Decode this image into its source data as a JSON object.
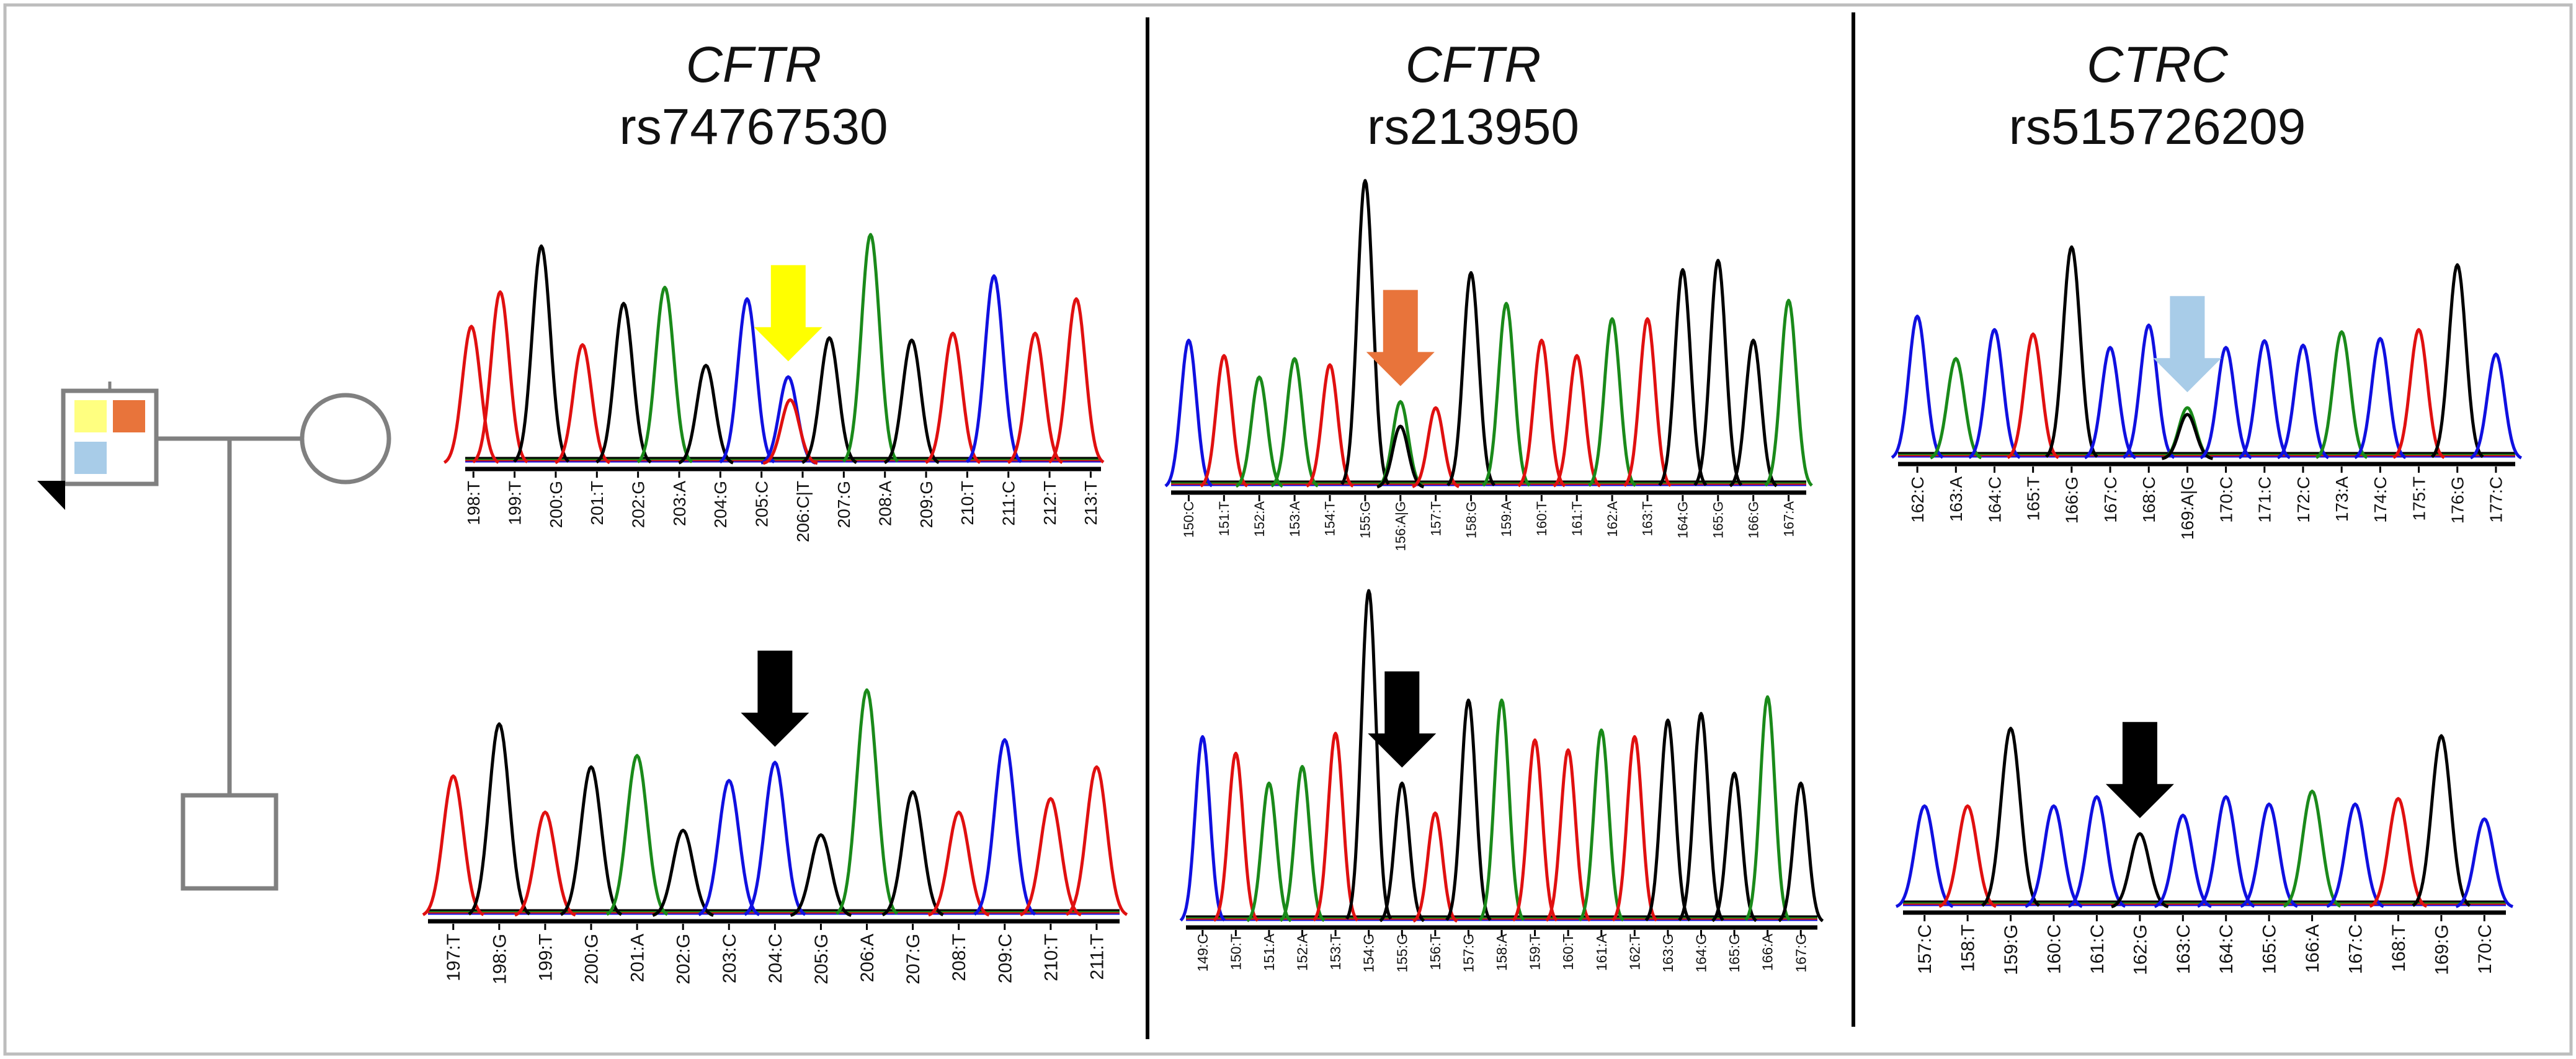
{
  "colors": {
    "A": "#1a8a1a",
    "C": "#1010e0",
    "G": "#000000",
    "T": "#e01010",
    "frame": "#bdbdbd",
    "pedigree": "#808080",
    "marker_yellow": "#ffff80",
    "marker_orange": "#e8743b",
    "marker_blue": "#a8cce8",
    "arrow_yellow": "#ffff00",
    "arrow_orange": "#e8743b",
    "arrow_blue": "#a8cce8",
    "arrow_black": "#000000"
  },
  "pedigree": {
    "proband_markers": [
      "yellow",
      "orange",
      "blue"
    ],
    "proband_sex": "male",
    "spouse_sex": "female",
    "child_sex": "male"
  },
  "panels": [
    {
      "gene": "CFTR",
      "variant": "rs74767530",
      "top_arrow_color": "yellow",
      "top": {
        "labels": [
          "198:T",
          "199:T",
          "200:G",
          "201:T",
          "202:G",
          "203:A",
          "204:G",
          "205:C",
          "206:C|T",
          "207:G",
          "208:A",
          "209:G",
          "210:T",
          "211:C",
          "212:T",
          "213:T"
        ],
        "peaks": [
          {
            "b": "T",
            "p": 0.0,
            "h": 0.0
          },
          {
            "b": "T",
            "p": 0.3,
            "h": 0.6
          },
          {
            "b": "T",
            "p": 1.0,
            "h": 0.75
          },
          {
            "b": "G",
            "p": 2.0,
            "h": 0.95
          },
          {
            "b": "T",
            "p": 3.0,
            "h": 0.52
          },
          {
            "b": "G",
            "p": 4.0,
            "h": 0.7
          },
          {
            "b": "A",
            "p": 5.0,
            "h": 0.77
          },
          {
            "b": "G",
            "p": 6.0,
            "h": 0.43
          },
          {
            "b": "C",
            "p": 7.0,
            "h": 0.72
          },
          {
            "b": "C",
            "p": 8.0,
            "h": 0.38
          },
          {
            "b": "T",
            "p": 8.05,
            "h": 0.28
          },
          {
            "b": "G",
            "p": 9.0,
            "h": 0.55
          },
          {
            "b": "A",
            "p": 10.0,
            "h": 1.0
          },
          {
            "b": "G",
            "p": 11.0,
            "h": 0.54
          },
          {
            "b": "T",
            "p": 12.0,
            "h": 0.57
          },
          {
            "b": "C",
            "p": 13.0,
            "h": 0.82
          },
          {
            "b": "T",
            "p": 14.0,
            "h": 0.57
          },
          {
            "b": "T",
            "p": 15.0,
            "h": 0.72
          }
        ],
        "arrow_index": 8
      },
      "bottom": {
        "labels": [
          "197:T",
          "198:G",
          "199:T",
          "200:G",
          "201:A",
          "202:G",
          "203:C",
          "204:C",
          "205:G",
          "206:A",
          "207:G",
          "208:T",
          "209:C",
          "210:T",
          "211:T"
        ],
        "peaks": [
          {
            "b": "T",
            "p": 0.0,
            "h": 0.62
          },
          {
            "b": "G",
            "p": 1.0,
            "h": 0.85
          },
          {
            "b": "T",
            "p": 2.0,
            "h": 0.46
          },
          {
            "b": "G",
            "p": 3.0,
            "h": 0.66
          },
          {
            "b": "A",
            "p": 4.0,
            "h": 0.71
          },
          {
            "b": "G",
            "p": 5.0,
            "h": 0.38
          },
          {
            "b": "C",
            "p": 6.0,
            "h": 0.6
          },
          {
            "b": "C",
            "p": 7.0,
            "h": 0.68
          },
          {
            "b": "G",
            "p": 8.0,
            "h": 0.36
          },
          {
            "b": "A",
            "p": 9.0,
            "h": 1.0
          },
          {
            "b": "G",
            "p": 10.0,
            "h": 0.55
          },
          {
            "b": "T",
            "p": 11.0,
            "h": 0.46
          },
          {
            "b": "C",
            "p": 12.0,
            "h": 0.78
          },
          {
            "b": "T",
            "p": 13.0,
            "h": 0.52
          },
          {
            "b": "T",
            "p": 14.0,
            "h": 0.66
          }
        ],
        "arrow_index": 7
      }
    },
    {
      "gene": "CFTR",
      "variant": "rs213950",
      "top_arrow_color": "orange",
      "top": {
        "labels": [
          "150:C",
          "151:T",
          "152:A",
          "153:A",
          "154:T",
          "155:G",
          "156:A|G",
          "157:T",
          "158:G",
          "159:A",
          "160:T",
          "161:T",
          "162:A",
          "163:T",
          "164:G",
          "165:G",
          "166:G",
          "167:A"
        ],
        "peaks": [
          {
            "b": "C",
            "p": 0.0,
            "h": 0.48
          },
          {
            "b": "T",
            "p": 1.0,
            "h": 0.43
          },
          {
            "b": "A",
            "p": 2.0,
            "h": 0.36
          },
          {
            "b": "A",
            "p": 3.0,
            "h": 0.42
          },
          {
            "b": "T",
            "p": 4.0,
            "h": 0.4
          },
          {
            "b": "G",
            "p": 5.0,
            "h": 1.0
          },
          {
            "b": "A",
            "p": 6.0,
            "h": 0.28
          },
          {
            "b": "G",
            "p": 6.0,
            "h": 0.2
          },
          {
            "b": "T",
            "p": 7.0,
            "h": 0.26
          },
          {
            "b": "G",
            "p": 8.0,
            "h": 0.7
          },
          {
            "b": "A",
            "p": 9.0,
            "h": 0.6
          },
          {
            "b": "T",
            "p": 10.0,
            "h": 0.48
          },
          {
            "b": "T",
            "p": 11.0,
            "h": 0.43
          },
          {
            "b": "A",
            "p": 12.0,
            "h": 0.55
          },
          {
            "b": "T",
            "p": 13.0,
            "h": 0.55
          },
          {
            "b": "G",
            "p": 14.0,
            "h": 0.71
          },
          {
            "b": "G",
            "p": 15.0,
            "h": 0.74
          },
          {
            "b": "G",
            "p": 16.0,
            "h": 0.48
          },
          {
            "b": "A",
            "p": 17.0,
            "h": 0.61
          }
        ],
        "arrow_index": 6
      },
      "bottom": {
        "labels": [
          "149:C",
          "150:T",
          "151:A",
          "152:A",
          "153:T",
          "154:G",
          "155:G",
          "156:T",
          "157:G",
          "158:A",
          "159:T",
          "160:T",
          "161:A",
          "162:T",
          "163:G",
          "164:G",
          "165:G",
          "166:A",
          "167:G"
        ],
        "peaks": [
          {
            "b": "C",
            "p": 0.0,
            "h": 0.56
          },
          {
            "b": "T",
            "p": 1.0,
            "h": 0.51
          },
          {
            "b": "A",
            "p": 2.0,
            "h": 0.42
          },
          {
            "b": "A",
            "p": 3.0,
            "h": 0.47
          },
          {
            "b": "T",
            "p": 4.0,
            "h": 0.57
          },
          {
            "b": "G",
            "p": 5.0,
            "h": 1.0
          },
          {
            "b": "G",
            "p": 6.0,
            "h": 0.42
          },
          {
            "b": "T",
            "p": 7.0,
            "h": 0.33
          },
          {
            "b": "G",
            "p": 8.0,
            "h": 0.67
          },
          {
            "b": "A",
            "p": 9.0,
            "h": 0.67
          },
          {
            "b": "T",
            "p": 10.0,
            "h": 0.55
          },
          {
            "b": "T",
            "p": 11.0,
            "h": 0.52
          },
          {
            "b": "A",
            "p": 12.0,
            "h": 0.58
          },
          {
            "b": "T",
            "p": 13.0,
            "h": 0.56
          },
          {
            "b": "G",
            "p": 14.0,
            "h": 0.61
          },
          {
            "b": "G",
            "p": 15.0,
            "h": 0.63
          },
          {
            "b": "G",
            "p": 16.0,
            "h": 0.45
          },
          {
            "b": "A",
            "p": 17.0,
            "h": 0.68
          },
          {
            "b": "G",
            "p": 18.0,
            "h": 0.42
          }
        ],
        "arrow_index": 6
      }
    },
    {
      "gene": "CTRC",
      "variant": "rs515726209",
      "top_arrow_color": "blue",
      "top": {
        "labels": [
          "162:C",
          "163:A",
          "164:C",
          "165:T",
          "166:G",
          "167:C",
          "168:C",
          "169:A|G",
          "170:C",
          "171:C",
          "172:C",
          "173:A",
          "174:C",
          "175:T",
          "176:G",
          "177:C"
        ],
        "peaks": [
          {
            "b": "C",
            "p": 0.0,
            "h": 0.64
          },
          {
            "b": "A",
            "p": 1.0,
            "h": 0.45
          },
          {
            "b": "C",
            "p": 2.0,
            "h": 0.58
          },
          {
            "b": "T",
            "p": 3.0,
            "h": 0.56
          },
          {
            "b": "G",
            "p": 4.0,
            "h": 0.95
          },
          {
            "b": "C",
            "p": 5.0,
            "h": 0.5
          },
          {
            "b": "C",
            "p": 6.0,
            "h": 0.6
          },
          {
            "b": "A",
            "p": 7.0,
            "h": 0.23
          },
          {
            "b": "G",
            "p": 7.0,
            "h": 0.2
          },
          {
            "b": "C",
            "p": 8.0,
            "h": 0.5
          },
          {
            "b": "C",
            "p": 9.0,
            "h": 0.53
          },
          {
            "b": "C",
            "p": 10.0,
            "h": 0.51
          },
          {
            "b": "A",
            "p": 11.0,
            "h": 0.57
          },
          {
            "b": "C",
            "p": 12.0,
            "h": 0.54
          },
          {
            "b": "T",
            "p": 13.0,
            "h": 0.58
          },
          {
            "b": "G",
            "p": 14.0,
            "h": 0.87
          },
          {
            "b": "C",
            "p": 15.0,
            "h": 0.47
          }
        ],
        "arrow_index": 7
      },
      "bottom": {
        "labels": [
          "157:C",
          "158:T",
          "159:G",
          "160:C",
          "161:C",
          "162:G",
          "163:C",
          "164:C",
          "165:C",
          "166:A",
          "167:C",
          "168:T",
          "169:G",
          "170:C"
        ],
        "peaks": [
          {
            "b": "C",
            "p": 0.0,
            "h": 0.55
          },
          {
            "b": "T",
            "p": 1.0,
            "h": 0.55
          },
          {
            "b": "G",
            "p": 2.0,
            "h": 0.97
          },
          {
            "b": "C",
            "p": 3.0,
            "h": 0.55
          },
          {
            "b": "C",
            "p": 4.0,
            "h": 0.6
          },
          {
            "b": "G",
            "p": 5.0,
            "h": 0.4
          },
          {
            "b": "C",
            "p": 6.0,
            "h": 0.5
          },
          {
            "b": "C",
            "p": 7.0,
            "h": 0.6
          },
          {
            "b": "C",
            "p": 8.0,
            "h": 0.56
          },
          {
            "b": "A",
            "p": 9.0,
            "h": 0.63
          },
          {
            "b": "C",
            "p": 10.0,
            "h": 0.56
          },
          {
            "b": "T",
            "p": 11.0,
            "h": 0.59
          },
          {
            "b": "G",
            "p": 12.0,
            "h": 0.93
          },
          {
            "b": "C",
            "p": 13.0,
            "h": 0.48
          }
        ],
        "arrow_index": 5
      }
    }
  ]
}
